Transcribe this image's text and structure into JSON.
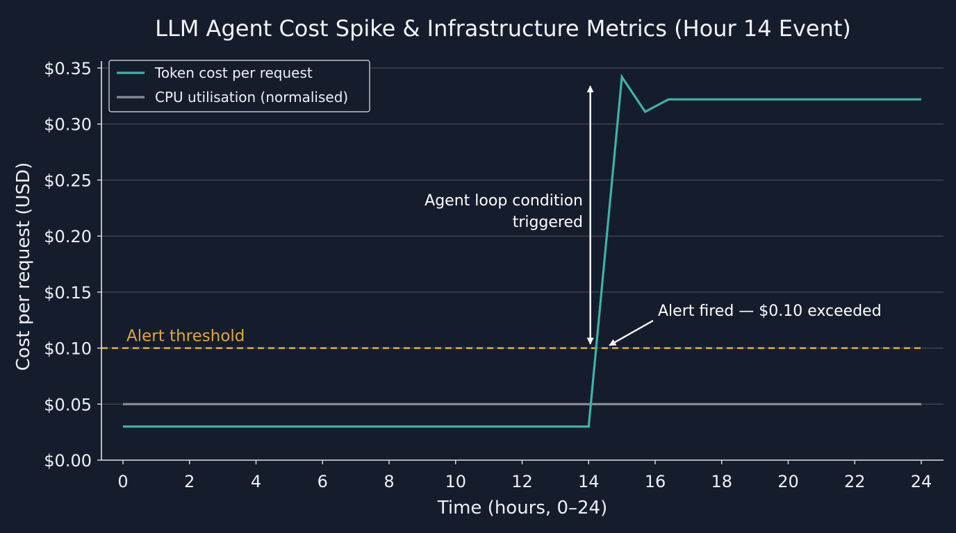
{
  "chart_data": {
    "type": "line",
    "title": "LLM Agent Cost Spike & Infrastructure Metrics (Hour 14 Event)",
    "xlabel": "Time (hours, 0–24)",
    "ylabel": "Cost per request (USD)",
    "xlim": [
      0,
      24
    ],
    "ylim": [
      0,
      0.35
    ],
    "x_ticks": [
      0,
      2,
      4,
      6,
      8,
      10,
      12,
      14,
      16,
      18,
      20,
      22,
      24
    ],
    "y_ticks": [
      0.0,
      0.05,
      0.1,
      0.15,
      0.2,
      0.25,
      0.3,
      0.35
    ],
    "y_tick_labels": [
      "$0.00",
      "$0.05",
      "$0.10",
      "$0.15",
      "$0.20",
      "$0.25",
      "$0.30",
      "$0.35"
    ],
    "grid": "horizontal",
    "legend_position": "top-left",
    "series": [
      {
        "name": "Token cost per request",
        "color": "#3fb2a8",
        "points": [
          [
            0,
            0.03
          ],
          [
            14,
            0.03
          ],
          [
            15,
            0.342
          ],
          [
            15.7,
            0.311
          ],
          [
            16.4,
            0.322
          ],
          [
            24,
            0.322
          ]
        ]
      },
      {
        "name": "CPU utilisation (normalised)",
        "color": "#8a8f98",
        "points": [
          [
            0,
            0.05
          ],
          [
            24,
            0.05
          ]
        ]
      }
    ],
    "threshold": {
      "value": 0.1,
      "label": "Alert threshold",
      "color": "#e0a63a",
      "style": "dashed"
    },
    "annotations": [
      {
        "lines": [
          "Agent loop condition",
          "triggered"
        ],
        "type": "double-arrow",
        "x": 14.05,
        "y_from": 0.1,
        "y_to": 0.34
      },
      {
        "text": "Alert fired — $0.10 exceeded",
        "type": "arrow",
        "x": 14.5,
        "y": 0.1
      }
    ]
  }
}
